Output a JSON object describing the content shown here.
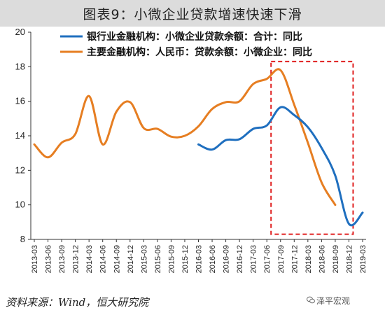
{
  "title": "图表9：小微企业贷款增速快速下滑",
  "source": "资料来源：Wind，恒大研究院",
  "watermark": "泽平宏观",
  "chart_data": {
    "type": "line",
    "categories": [
      "2013-03",
      "2013-06",
      "2013-09",
      "2013-12",
      "2014-03",
      "2014-06",
      "2014-09",
      "2014-12",
      "2015-03",
      "2015-06",
      "2015-09",
      "2015-12",
      "2016-03",
      "2016-06",
      "2016-09",
      "2016-12",
      "2017-03",
      "2017-06",
      "2017-09",
      "2017-12",
      "2018-03",
      "2018-06",
      "2018-09",
      "2018-12",
      "2019-03"
    ],
    "ylim": [
      8,
      20
    ],
    "yticks": [
      8,
      10,
      12,
      14,
      16,
      18,
      20
    ],
    "legend_position": "top",
    "series": [
      {
        "name": "银行业金融机构：小微企业贷款余额：合计：同比",
        "color": "#1f6fbf",
        "values": [
          null,
          null,
          null,
          null,
          null,
          null,
          null,
          null,
          null,
          null,
          null,
          null,
          13.5,
          13.2,
          13.75,
          13.8,
          14.4,
          14.6,
          15.65,
          15.2,
          14.5,
          13.3,
          11.7,
          8.9,
          9.55
        ]
      },
      {
        "name": "主要金融机构：人民币：贷款余额：小微企业：同比",
        "color": "#e67e22",
        "values": [
          13.5,
          12.75,
          13.6,
          14.1,
          16.3,
          13.5,
          15.4,
          15.95,
          14.45,
          14.4,
          13.95,
          14.0,
          14.55,
          15.55,
          15.95,
          16.0,
          17.0,
          17.3,
          17.8,
          15.8,
          13.6,
          11.3,
          10.0,
          null,
          null
        ]
      }
    ],
    "highlight": {
      "from": "2017-06",
      "to": "2018-12",
      "color": "#e02020"
    }
  }
}
